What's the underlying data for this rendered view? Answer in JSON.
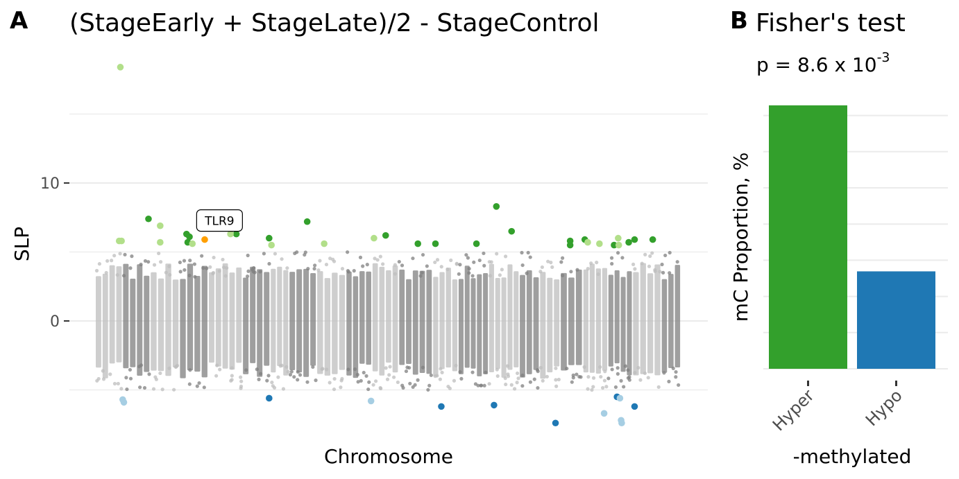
{
  "panels": {
    "a": {
      "letter": "A",
      "title": "(StageEarly + StageLate)/2 - StageControl",
      "xlabel": "Chromosome",
      "ylabel": "SLP"
    },
    "b": {
      "letter": "B",
      "title": "Fisher's test",
      "subtitle_base": "p = 8.6 x 10",
      "subtitle_exp": "-3",
      "xlabel": "-methylated",
      "ylabel": "mC Proportion, %"
    }
  },
  "chart_data": [
    {
      "type": "scatter",
      "title": "(StageEarly + StageLate)/2 - StageControl",
      "xlabel": "Chromosome",
      "ylabel": "SLP",
      "ylim": [
        -5.5,
        18.5
      ],
      "y_ticks": [
        0,
        10
      ],
      "y_tick_labels": [
        "0",
        "10"
      ],
      "grid": true,
      "chromosome_bands": {
        "count": 22,
        "colors": [
          "#bdbdbd",
          "#7f7f7f"
        ],
        "typical_range": [
          -4,
          4
        ],
        "max_range": [
          -5,
          5
        ]
      },
      "annotation": {
        "label": "TLR9",
        "x": 0.19,
        "y": 5.9
      },
      "highlight_series": [
        {
          "color": "#33a02c",
          "points": [
            [
              0.09,
              7.4
            ],
            [
              0.155,
              6.3
            ],
            [
              0.157,
              5.7
            ],
            [
              0.16,
              6.1
            ],
            [
              0.24,
              6.3
            ],
            [
              0.296,
              6.0
            ],
            [
              0.361,
              7.2
            ],
            [
              0.495,
              6.2
            ],
            [
              0.55,
              5.6
            ],
            [
              0.58,
              5.6
            ],
            [
              0.65,
              5.6
            ],
            [
              0.684,
              8.3
            ],
            [
              0.71,
              6.5
            ],
            [
              0.81,
              5.8
            ],
            [
              0.81,
              5.5
            ],
            [
              0.835,
              5.9
            ],
            [
              0.885,
              5.5
            ],
            [
              0.91,
              5.7
            ],
            [
              0.92,
              5.9
            ],
            [
              0.951,
              5.9
            ]
          ]
        },
        {
          "color": "#b2df8a",
          "points": [
            [
              0.042,
              18.4
            ],
            [
              0.04,
              5.8
            ],
            [
              0.044,
              5.8
            ],
            [
              0.11,
              6.9
            ],
            [
              0.11,
              5.7
            ],
            [
              0.165,
              5.6
            ],
            [
              0.23,
              6.3
            ],
            [
              0.3,
              5.5
            ],
            [
              0.39,
              5.6
            ],
            [
              0.475,
              6.0
            ],
            [
              0.84,
              5.7
            ],
            [
              0.86,
              5.6
            ],
            [
              0.892,
              6.0
            ],
            [
              0.893,
              5.5
            ]
          ]
        },
        {
          "color": "#ff9f00",
          "points": [
            [
              0.186,
              5.9
            ]
          ]
        },
        {
          "color": "#1f78b4",
          "points": [
            [
              0.296,
              -5.6
            ],
            [
              0.59,
              -6.2
            ],
            [
              0.68,
              -6.1
            ],
            [
              0.785,
              -7.4
            ],
            [
              0.89,
              -5.5
            ],
            [
              0.92,
              -6.2
            ]
          ]
        },
        {
          "color": "#a6cee3",
          "points": [
            [
              0.046,
              -5.7
            ],
            [
              0.048,
              -5.9
            ],
            [
              0.47,
              -5.8
            ],
            [
              0.868,
              -6.7
            ],
            [
              0.895,
              -5.6
            ],
            [
              0.897,
              -7.2
            ],
            [
              0.898,
              -7.4
            ]
          ]
        }
      ]
    },
    {
      "type": "bar",
      "title": "Fisher's test",
      "subtitle": "p = 8.6 x 10^-3",
      "xlabel": "-methylated",
      "ylabel": "mC Proportion, %",
      "categories": [
        "Hyper",
        "Hypo"
      ],
      "values": [
        73,
        27
      ],
      "colors": [
        "#33a02c",
        "#1f78b4"
      ],
      "ylim": [
        0,
        73
      ],
      "grid": true
    }
  ]
}
